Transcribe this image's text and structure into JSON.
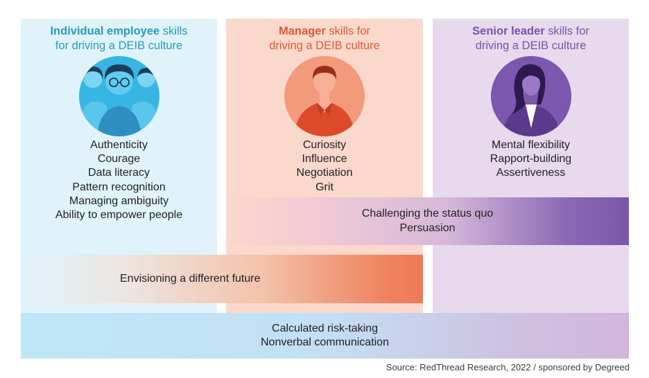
{
  "columns": {
    "individual": {
      "title_bold": "Individual employee",
      "title_rest": " skills",
      "title_line2": "for driving a DEIB culture",
      "avatar_icon": "group-of-people-icon",
      "skills": [
        "Authenticity",
        "Courage",
        "Data literacy",
        "Pattern recognition",
        "Managing ambiguity",
        "Ability to empower people"
      ]
    },
    "manager": {
      "title_bold": "Manager",
      "title_rest": " skills for",
      "title_line2": "driving a DEIB culture",
      "avatar_icon": "manager-person-icon",
      "skills": [
        "Curiosity",
        "Influence",
        "Negotiation",
        "Grit"
      ]
    },
    "senior": {
      "title_bold": "Senior leader",
      "title_rest": " skills for",
      "title_line2": "driving a DEIB culture",
      "avatar_icon": "senior-leader-woman-icon",
      "skills": [
        "Mental flexibility",
        "Rapport-building",
        "Assertiveness"
      ]
    }
  },
  "bands": {
    "challenge": [
      "Challenging the status quo",
      "Persuasion"
    ],
    "future": [
      "Envisioning a different future"
    ],
    "risk": [
      "Calculated risk-taking",
      "Nonverbal communication"
    ]
  },
  "colors": {
    "individual_accent": "#2a9ab8",
    "manager_accent": "#dc5b38",
    "senior_accent": "#7754a8"
  },
  "source": "Source: RedThread Research, 2022 / sponsored by Degreed"
}
